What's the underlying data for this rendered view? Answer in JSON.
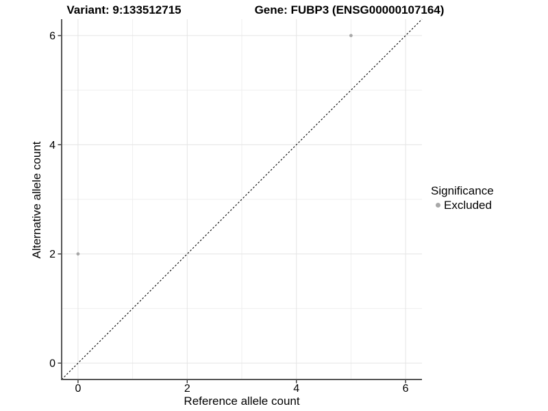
{
  "chart_data": {
    "type": "scatter",
    "title_left": "Variant: 9:133512715",
    "title_right": "Gene: FUBP3 (ENSG00000107164)",
    "xlabel": "Reference allele count",
    "ylabel": "Alternative allele count",
    "xlim": [
      -0.3,
      6.3
    ],
    "ylim": [
      -0.3,
      6.3
    ],
    "x_ticks": [
      0,
      2,
      4,
      6
    ],
    "y_ticks": [
      0,
      2,
      4,
      6
    ],
    "x_minor_ticks": [
      1,
      3,
      5
    ],
    "y_minor_ticks": [
      1,
      3,
      5
    ],
    "grid": true,
    "series": [
      {
        "name": "Excluded",
        "color": "#a8a8a8",
        "point_radius": 2.4,
        "points": [
          {
            "x": 0,
            "y": 2
          },
          {
            "x": 5,
            "y": 6
          }
        ]
      }
    ],
    "reference_line": {
      "kind": "identity",
      "slope": 1,
      "intercept": 0,
      "style": "dashed",
      "color": "#000000"
    },
    "legend": {
      "title": "Significance",
      "position": "right",
      "items": [
        {
          "label": "Excluded",
          "color": "#a8a8a8"
        }
      ]
    },
    "colors": {
      "axis_line": "#555555",
      "tick_mark": "#333333",
      "grid_major": "#e4e4e4",
      "grid_minor": "#eeeeee",
      "tick_label": "#000000"
    }
  }
}
